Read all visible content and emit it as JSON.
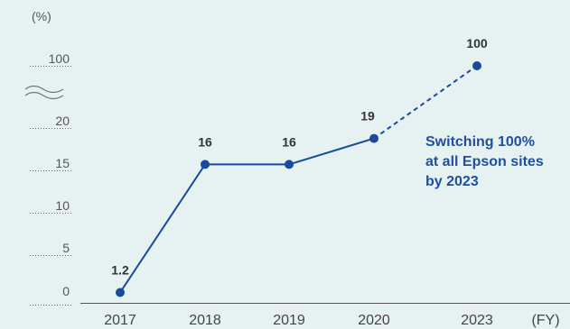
{
  "chart_data": {
    "type": "line",
    "categories": [
      "2017",
      "2018",
      "2019",
      "2020",
      "2023"
    ],
    "values": [
      1.2,
      16,
      16,
      19,
      100
    ],
    "value_labels": [
      "1.2",
      "16",
      "16",
      "19",
      "100"
    ],
    "segment_styles": [
      "solid",
      "solid",
      "solid",
      "dashed"
    ],
    "y_ticks": [
      "0",
      "5",
      "10",
      "15",
      "20",
      "100"
    ],
    "y_axis_break": "≈",
    "y_unit_label": "(%)",
    "x_unit_label": "(FY)",
    "annotation": [
      "Switching 100%",
      "at all Epson sites",
      "by 2023"
    ],
    "ylim": [
      0,
      100
    ],
    "grid": false,
    "legend": "none",
    "colors": {
      "line": "#1a4a9a",
      "point": "#1a4a9a",
      "annotation": "#1f4f9f",
      "background": "#e6f2f1",
      "axis": "#555555"
    }
  }
}
